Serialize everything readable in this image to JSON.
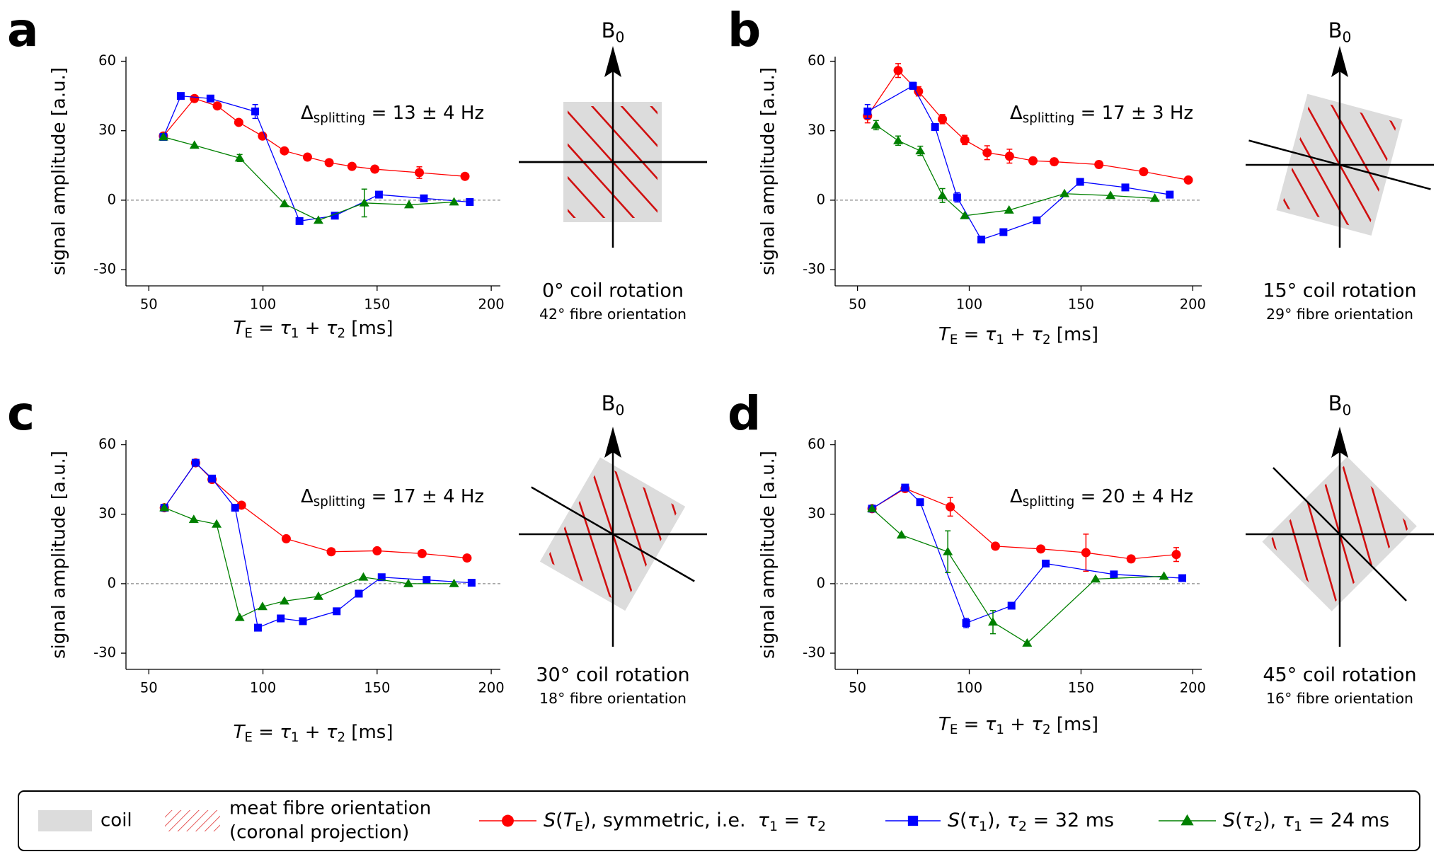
{
  "chart_data": [
    {
      "type": "line",
      "label": "a",
      "ylabel": "signal amplitude [a.u.]",
      "xlabel": [
        {
          "text": "T",
          "italic": true
        },
        {
          "text": "E",
          "sub": true
        },
        {
          "text": " = "
        },
        {
          "text": "τ",
          "italic": true
        },
        {
          "text": "1",
          "sub": true
        },
        {
          "text": " + "
        },
        {
          "text": "τ",
          "italic": true
        },
        {
          "text": "2",
          "sub": true
        },
        {
          "text": " [ms]"
        }
      ],
      "annotation": [
        {
          "text": "Δ"
        },
        {
          "text": "splitting",
          "sub": true
        },
        {
          "text": " = 13 ± 4 Hz"
        }
      ],
      "xlim": [
        40,
        204
      ],
      "ylim": [
        -37,
        62
      ],
      "xticks": [
        50,
        100,
        150,
        200
      ],
      "yticks": [
        -30,
        0,
        30,
        60
      ],
      "series": [
        {
          "name": [
            {
              "text": "S",
              "italic": true
            },
            {
              "text": "("
            },
            {
              "text": "T",
              "italic": true
            },
            {
              "text": "E",
              "sub": true
            },
            {
              "text": "), symmetric, i.e.  "
            },
            {
              "text": "τ",
              "italic": true
            },
            {
              "text": "1",
              "sub": true
            },
            {
              "text": " = "
            },
            {
              "text": "τ",
              "italic": true
            },
            {
              "text": "2",
              "sub": true
            }
          ],
          "color": "#ff0000",
          "marker": "circle",
          "x": [
            56.4,
            70,
            80,
            89.4,
            99.8,
            109.4,
            119.5,
            129,
            139,
            149,
            168.5,
            188.5
          ],
          "values": [
            27.7,
            43.9,
            40.7,
            33.6,
            27.7,
            21.3,
            18.6,
            16.2,
            14.6,
            13.4,
            11.9,
            10.3
          ],
          "errors": [
            null,
            null,
            null,
            null,
            null,
            null,
            null,
            null,
            null,
            null,
            2.5,
            null
          ]
        },
        {
          "name": [
            {
              "text": "S",
              "italic": true
            },
            {
              "text": "("
            },
            {
              "text": "τ",
              "italic": true
            },
            {
              "text": "1",
              "sub": true
            },
            {
              "text": "), "
            },
            {
              "text": "τ",
              "italic": true
            },
            {
              "text": "2",
              "sub": true
            },
            {
              "text": " = 32 ms"
            }
          ],
          "color": "#0000ff",
          "marker": "square",
          "x": [
            56.4,
            64,
            77,
            96.6,
            116,
            131.5,
            150.8,
            170.5,
            190.6
          ],
          "values": [
            27.3,
            45,
            43.9,
            38.3,
            -9,
            -6.7,
            2.4,
            0.8,
            -0.8
          ],
          "errors": [
            null,
            null,
            null,
            3,
            null,
            null,
            null,
            null,
            null
          ]
        },
        {
          "name": [
            {
              "text": "S",
              "italic": true
            },
            {
              "text": "("
            },
            {
              "text": "τ",
              "italic": true
            },
            {
              "text": "2",
              "sub": true
            },
            {
              "text": "), "
            },
            {
              "text": "τ",
              "italic": true
            },
            {
              "text": "1",
              "sub": true
            },
            {
              "text": " = 24 ms"
            }
          ],
          "color": "#008000",
          "marker": "triangle",
          "x": [
            56.4,
            70,
            89.8,
            109.4,
            124.3,
            144.4,
            164,
            183.7
          ],
          "values": [
            27.3,
            23.7,
            18.2,
            -1.6,
            -8.7,
            -1.2,
            -2,
            -0.8
          ],
          "errors": [
            null,
            null,
            1.5,
            null,
            null,
            6,
            null,
            null
          ]
        }
      ],
      "diagram": {
        "field": [
          {
            "text": "B"
          },
          {
            "text": "0",
            "sub": true
          }
        ],
        "coil_rotation": 0,
        "fibre_orientation": 42,
        "coil_label": "0° coil rotation",
        "fibre_label": "42° fibre orientation"
      }
    },
    {
      "type": "line",
      "label": "b",
      "ylabel": "signal amplitude [a.u.]",
      "xlabel": [
        {
          "text": "T",
          "italic": true
        },
        {
          "text": "E",
          "sub": true
        },
        {
          "text": " = "
        },
        {
          "text": "τ",
          "italic": true
        },
        {
          "text": "1",
          "sub": true
        },
        {
          "text": " + "
        },
        {
          "text": "τ",
          "italic": true
        },
        {
          "text": "2",
          "sub": true
        },
        {
          "text": " [ms]"
        }
      ],
      "annotation": [
        {
          "text": "Δ"
        },
        {
          "text": "splitting",
          "sub": true
        },
        {
          "text": " = 17 ± 3 Hz"
        }
      ],
      "xlim": [
        40,
        204
      ],
      "ylim": [
        -37,
        62
      ],
      "xticks": [
        50,
        100,
        150,
        200
      ],
      "yticks": [
        -30,
        0,
        30,
        60
      ],
      "series": [
        {
          "color": "#ff0000",
          "marker": "circle",
          "x": [
            54.5,
            68.2,
            77.3,
            88,
            98,
            108,
            118,
            128.5,
            138,
            158,
            178,
            198
          ],
          "values": [
            36.4,
            56,
            47,
            35,
            26,
            20.5,
            19,
            17,
            16.6,
            15.4,
            12.3,
            8.7
          ],
          "errors": [
            3,
            3,
            2,
            2,
            2,
            3,
            3,
            1.5,
            1.5,
            1.5,
            1,
            1
          ]
        },
        {
          "color": "#0000ff",
          "marker": "square",
          "x": [
            54.5,
            74.8,
            84.7,
            94.6,
            105.4,
            115.3,
            130.2,
            149.6,
            169.8,
            189.7
          ],
          "values": [
            38.3,
            49.4,
            31.6,
            1.2,
            -17,
            -13.8,
            -8.7,
            7.9,
            5.5,
            2.4
          ],
          "errors": [
            3,
            1.5,
            1.5,
            2,
            null,
            null,
            null,
            null,
            null,
            null
          ]
        },
        {
          "color": "#008000",
          "marker": "triangle",
          "x": [
            58.3,
            68.2,
            78.1,
            88,
            98,
            117.8,
            142.6,
            163.2,
            183
          ],
          "values": [
            32.4,
            25.7,
            21.3,
            2,
            -6.7,
            -4.3,
            2.8,
            2,
            0.8
          ],
          "errors": [
            2,
            2,
            2,
            3,
            null,
            null,
            null,
            null,
            null
          ]
        }
      ],
      "diagram": {
        "field": [
          {
            "text": "B"
          },
          {
            "text": "0",
            "sub": true
          }
        ],
        "coil_rotation": 15,
        "fibre_orientation": 29,
        "coil_label": "15° coil rotation",
        "fibre_label": "29° fibre orientation"
      }
    },
    {
      "type": "line",
      "label": "c",
      "ylabel": "signal amplitude [a.u.]",
      "xlabel": [
        {
          "text": "T",
          "italic": true
        },
        {
          "text": "E",
          "sub": true
        },
        {
          "text": " = "
        },
        {
          "text": "τ",
          "italic": true
        },
        {
          "text": "1",
          "sub": true
        },
        {
          "text": " + "
        },
        {
          "text": "τ",
          "italic": true
        },
        {
          "text": "2",
          "sub": true
        },
        {
          "text": " [ms]"
        }
      ],
      "annotation": [
        {
          "text": "Δ"
        },
        {
          "text": "splitting",
          "sub": true
        },
        {
          "text": " = 17 ± 4 Hz"
        }
      ],
      "xlim": [
        40,
        204
      ],
      "ylim": [
        -37,
        62
      ],
      "xticks": [
        50,
        100,
        150,
        200
      ],
      "yticks": [
        -30,
        0,
        30,
        60
      ],
      "series": [
        {
          "color": "#ff0000",
          "marker": "circle",
          "x": [
            56.8,
            70.5,
            77.7,
            90.6,
            110.2,
            129.9,
            150,
            169.7,
            189.4
          ],
          "values": [
            32.8,
            52.2,
            45,
            33.9,
            19.4,
            13.8,
            14.2,
            13,
            11.1
          ]
        },
        {
          "color": "#0000ff",
          "marker": "square",
          "x": [
            56.8,
            70.5,
            77.7,
            87.8,
            97.8,
            107.8,
            117.5,
            132.3,
            142,
            152,
            171.7,
            191.4
          ],
          "values": [
            32.8,
            52.2,
            45.4,
            32.8,
            -19,
            -15,
            -16.2,
            -11.9,
            -4.3,
            2.8,
            1.6,
            0.4
          ]
        },
        {
          "color": "#008000",
          "marker": "triangle",
          "x": [
            56.8,
            69.7,
            79.7,
            89.8,
            99.8,
            109.4,
            124.3,
            144,
            163.7,
            183.7
          ],
          "values": [
            32.8,
            27.7,
            25.7,
            -14.6,
            -9.9,
            -7.5,
            -5.5,
            2.8,
            0,
            0
          ]
        }
      ],
      "diagram": {
        "field": [
          {
            "text": "B"
          },
          {
            "text": "0",
            "sub": true
          }
        ],
        "coil_rotation": 30,
        "fibre_orientation": 18,
        "coil_label": "30° coil rotation",
        "fibre_label": "18° fibre orientation"
      }
    },
    {
      "type": "line",
      "label": "d",
      "ylabel": "signal amplitude [a.u.]",
      "xlabel": [
        {
          "text": "T",
          "italic": true
        },
        {
          "text": "E",
          "sub": true
        },
        {
          "text": " = "
        },
        {
          "text": "τ",
          "italic": true
        },
        {
          "text": "1",
          "sub": true
        },
        {
          "text": " + "
        },
        {
          "text": "τ",
          "italic": true
        },
        {
          "text": "2",
          "sub": true
        },
        {
          "text": " [ms]"
        }
      ],
      "annotation": [
        {
          "text": "Δ"
        },
        {
          "text": "splitting",
          "sub": true
        },
        {
          "text": " = 20 ± 4 Hz"
        }
      ],
      "xlim": [
        40,
        204
      ],
      "ylim": [
        -37,
        62
      ],
      "xticks": [
        50,
        100,
        150,
        200
      ],
      "yticks": [
        -30,
        0,
        30,
        60
      ],
      "series": [
        {
          "color": "#ff0000",
          "marker": "circle",
          "x": [
            56.5,
            71.3,
            91.5,
            111.7,
            132,
            152.2,
            172.4,
            192.6
          ],
          "values": [
            32.4,
            41.1,
            33.2,
            16.2,
            15,
            13.4,
            10.7,
            12.6
          ],
          "errors": [
            null,
            null,
            4,
            null,
            null,
            8,
            null,
            3
          ]
        },
        {
          "color": "#0000ff",
          "marker": "square",
          "x": [
            56.5,
            71.3,
            78,
            98.6,
            118.9,
            134.2,
            164.7,
            195.3
          ],
          "values": [
            32.4,
            41.5,
            35.2,
            -17,
            -9.5,
            8.7,
            4,
            2.4
          ],
          "errors": [
            null,
            null,
            null,
            2,
            null,
            null,
            null,
            null
          ]
        },
        {
          "color": "#008000",
          "marker": "triangle",
          "x": [
            56.5,
            69.7,
            90.4,
            110.6,
            125.9,
            156.5,
            187.1
          ],
          "values": [
            32.4,
            21,
            13.8,
            -16.6,
            -25.7,
            2,
            3.2
          ],
          "errors": [
            null,
            null,
            9,
            5,
            null,
            null,
            null
          ]
        }
      ],
      "diagram": {
        "field": [
          {
            "text": "B"
          },
          {
            "text": "0",
            "sub": true
          }
        ],
        "coil_rotation": 45,
        "fibre_orientation": 16,
        "coil_label": "45° coil rotation",
        "fibre_label": "16° fibre orientation"
      }
    }
  ],
  "legend": {
    "coil": "coil",
    "fibre": [
      "meat fibre orientation",
      "(coronal projection)"
    ]
  }
}
